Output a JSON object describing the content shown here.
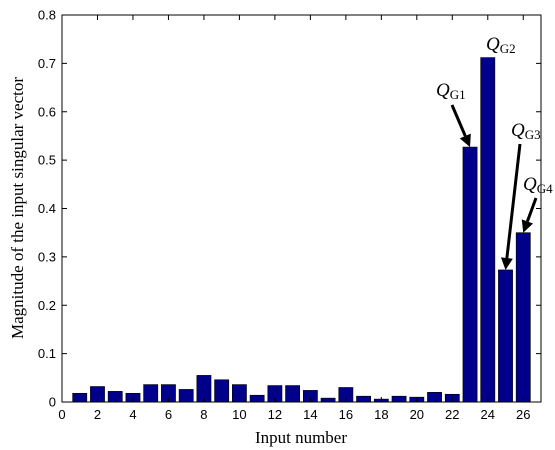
{
  "chart_data": {
    "type": "bar",
    "title": "",
    "xlabel": "Input number",
    "ylabel": "Magnitude of the input singular vector",
    "xlim": [
      0,
      27
    ],
    "ylim": [
      0,
      0.8
    ],
    "xticks": [
      0,
      2,
      4,
      6,
      8,
      10,
      12,
      14,
      16,
      18,
      20,
      22,
      24,
      26
    ],
    "yticks": [
      0,
      0.1,
      0.2,
      0.3,
      0.4,
      0.5,
      0.6,
      0.7,
      0.8
    ],
    "grid": false,
    "bar_color": "#00008B",
    "categories": [
      1,
      2,
      3,
      4,
      5,
      6,
      7,
      8,
      9,
      10,
      11,
      12,
      13,
      14,
      15,
      16,
      17,
      18,
      19,
      20,
      21,
      22,
      23,
      24,
      25,
      26
    ],
    "values": [
      0.018,
      0.032,
      0.022,
      0.018,
      0.036,
      0.036,
      0.026,
      0.055,
      0.046,
      0.036,
      0.014,
      0.034,
      0.034,
      0.024,
      0.008,
      0.03,
      0.012,
      0.006,
      0.012,
      0.01,
      0.02,
      0.016,
      0.527,
      0.712,
      0.273,
      0.35
    ],
    "annotations": [
      {
        "label": "Q",
        "sub": "G1",
        "target_x": 23,
        "target_y": 0.527
      },
      {
        "label": "Q",
        "sub": "G2",
        "target_x": 24,
        "target_y": 0.712
      },
      {
        "label": "Q",
        "sub": "G3",
        "target_x": 25,
        "target_y": 0.273
      },
      {
        "label": "Q",
        "sub": "G4",
        "target_x": 26,
        "target_y": 0.35
      }
    ]
  }
}
